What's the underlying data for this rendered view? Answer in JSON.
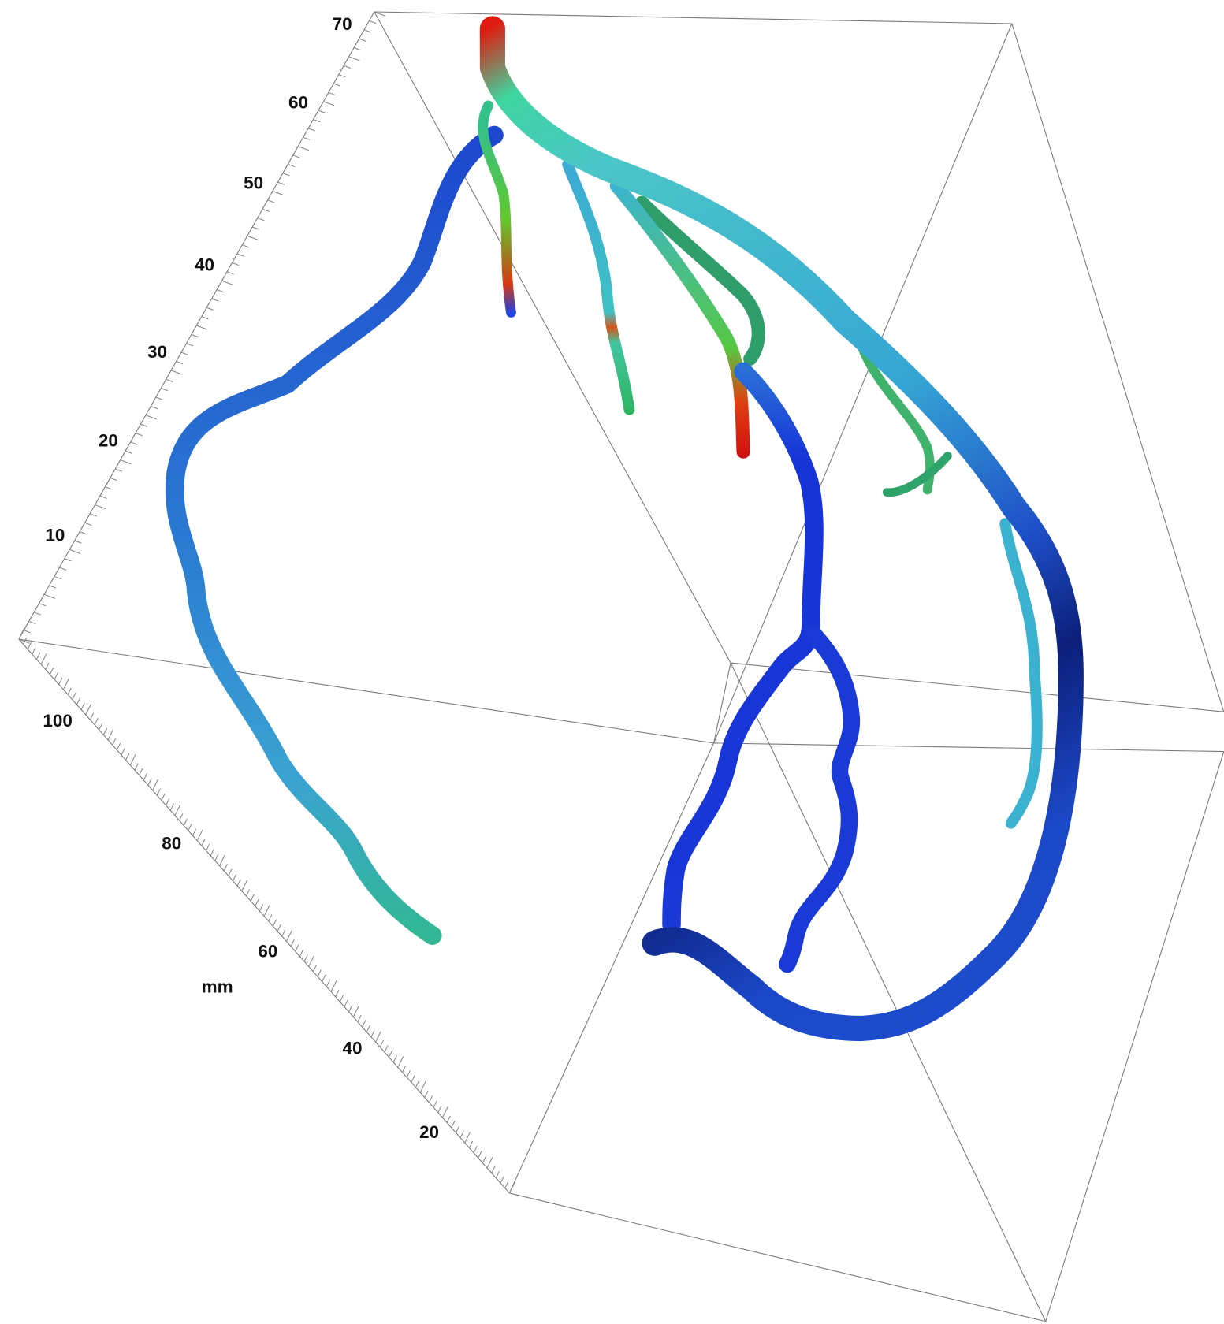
{
  "axes": {
    "vertical": {
      "ticks": [
        "70",
        "60",
        "50",
        "40",
        "30",
        "20",
        "10"
      ]
    },
    "depth": {
      "label": "mm",
      "ticks": [
        "100",
        "80",
        "60",
        "40",
        "20"
      ]
    }
  }
}
